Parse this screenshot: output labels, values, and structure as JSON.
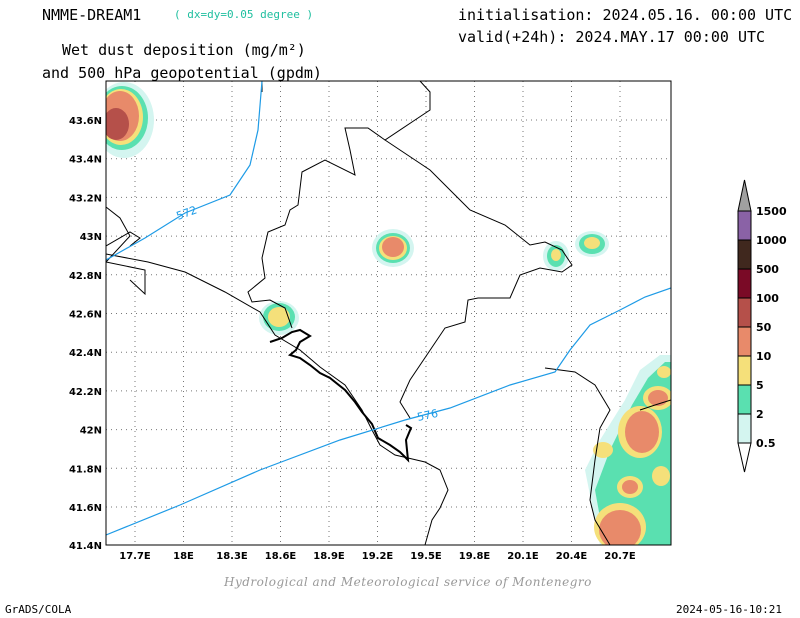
{
  "header": {
    "model": "NMME-DREAM1",
    "resolution": "( dx=dy=0.05 degree )",
    "initialisation": "initialisation: 2024.05.16. 00:00 UTC",
    "valid": "valid(+24h): 2024.MAY.17 00:00 UTC",
    "title_line1": "Wet dust deposition (mg/m²)",
    "title_line2": "and 500 hPa geopotential (gpdm)"
  },
  "map": {
    "lat_labels": [
      "43.6N",
      "43.4N",
      "43.2N",
      "43N",
      "42.8N",
      "42.6N",
      "42.4N",
      "42.2N",
      "42N",
      "41.8N",
      "41.6N",
      "41.4N"
    ],
    "lon_labels": [
      "17.7E",
      "18E",
      "18.3E",
      "18.6E",
      "18.9E",
      "19.2E",
      "19.5E",
      "19.8E",
      "20.1E",
      "20.4E",
      "20.7E"
    ],
    "contour_labels": [
      "572",
      "576"
    ],
    "line_color": "#1e9be6"
  },
  "legend": {
    "levels": [
      "1500",
      "1000",
      "500",
      "100",
      "50",
      "10",
      "5",
      "2",
      "0.5"
    ],
    "colors": [
      "#a0a0a0",
      "#8a62a6",
      "#40281e",
      "#7a0a26",
      "#b5504a",
      "#e88a6a",
      "#f5e07a",
      "#5ae0b0",
      "#d4f5f0"
    ]
  },
  "footer": {
    "credit": "Hydrological and Meteorological service of Montenegro",
    "software": "GrADS/COLA",
    "timestamp": "2024-05-16-10:21"
  }
}
